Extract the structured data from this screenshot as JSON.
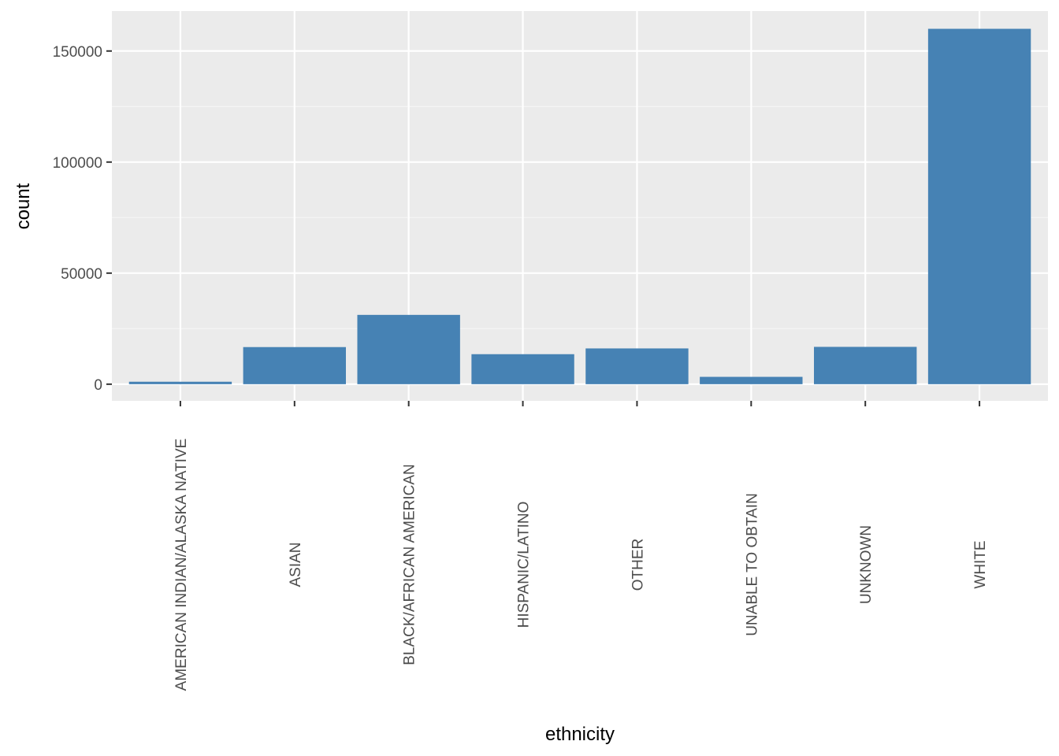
{
  "chart_data": {
    "type": "bar",
    "categories": [
      "AMERICAN INDIAN/ALASKA NATIVE",
      "ASIAN",
      "BLACK/AFRICAN AMERICAN",
      "HISPANIC/LATINO",
      "OTHER",
      "UNABLE TO OBTAIN",
      "UNKNOWN",
      "WHITE"
    ],
    "values": [
      1100,
      16700,
      31200,
      13500,
      16100,
      3300,
      16800,
      160000
    ],
    "xlabel": "ethnicity",
    "ylabel": "count",
    "ylim": [
      -7500,
      168000
    ],
    "yticks": [
      0,
      50000,
      100000,
      150000
    ],
    "ytick_labels": [
      "0",
      "50000",
      "100000",
      "150000"
    ],
    "grid": true,
    "legend": "none",
    "colors": {
      "bar": "#4682B4",
      "panel": "#EBEBEB",
      "grid_major": "#FFFFFF",
      "grid_minor": "#F5F5F5",
      "tick_text": "#4D4D4D",
      "tick_mark": "#333333"
    }
  }
}
